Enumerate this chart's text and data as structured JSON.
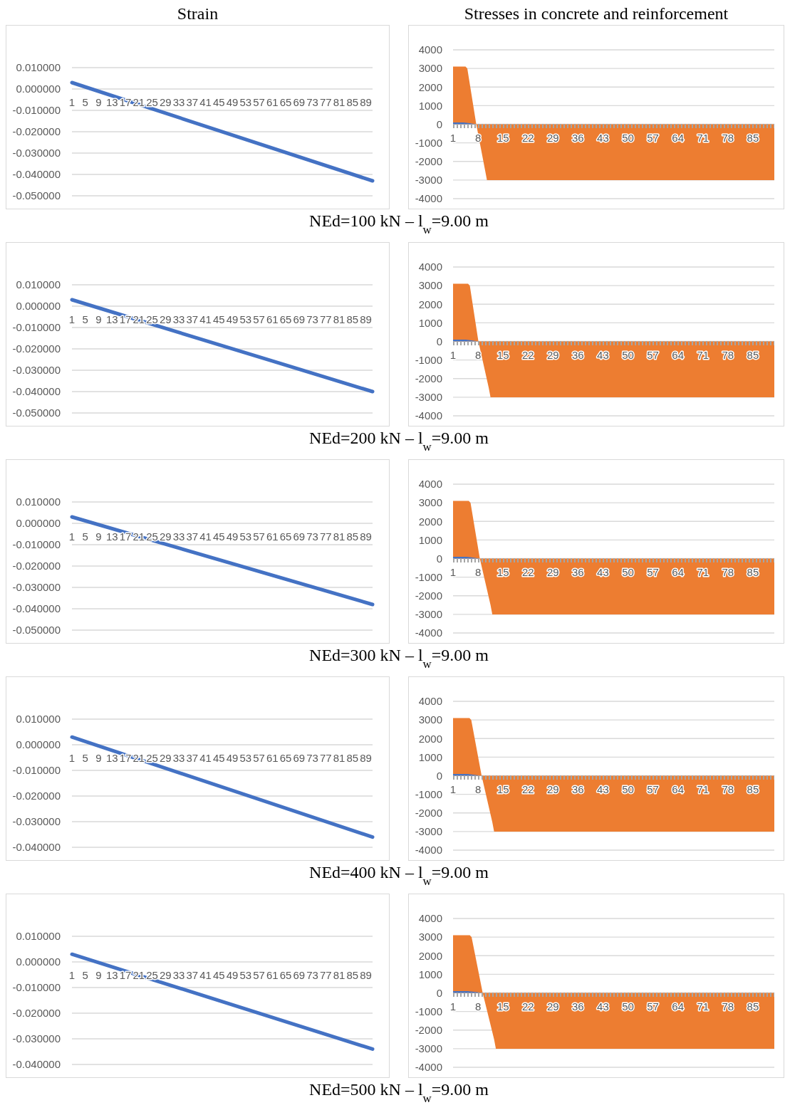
{
  "chart_data": [
    {
      "type": "line",
      "title": "Strain",
      "annotations": [
        "NEd=100 kN – l$_{w}$=9.00 m"
      ],
      "xlim": [
        1,
        91
      ],
      "xticks": [
        1,
        5,
        9,
        13,
        17,
        21,
        25,
        29,
        33,
        37,
        41,
        45,
        49,
        53,
        57,
        61,
        65,
        69,
        73,
        77,
        81,
        85,
        89
      ],
      "ylim": [
        -0.05,
        0.01
      ],
      "yticks": [
        {
          "value": 0.01,
          "label": "0.010000"
        },
        {
          "value": 0,
          "label": "0.000000"
        },
        {
          "value": -0.01,
          "label": "-0.010000"
        },
        {
          "value": -0.02,
          "label": "-0.020000"
        },
        {
          "value": -0.03,
          "label": "-0.030000"
        },
        {
          "value": -0.04,
          "label": "-0.040000"
        },
        {
          "value": -0.05,
          "label": "-0.050000"
        }
      ],
      "grid": "y",
      "series": [
        {
          "color": "#4472c4",
          "x": [
            1,
            91
          ],
          "values": [
            0.003,
            -0.043
          ]
        }
      ]
    },
    {
      "type": "area",
      "title": "Stresses in concrete and reinforcement",
      "xlim": [
        1,
        91
      ],
      "xticks": [
        1,
        8,
        15,
        22,
        29,
        36,
        43,
        50,
        57,
        64,
        71,
        78,
        85
      ],
      "ylim": [
        -4000,
        4000
      ],
      "yticks": [
        4000,
        3000,
        2000,
        1000,
        0,
        -1000,
        -2000,
        -3000,
        -4000
      ],
      "grid": "y",
      "series": [
        {
          "color": "#ed7d31",
          "x": [
            1,
            4.5,
            5,
            7.5,
            10,
            10.5,
            91
          ],
          "values": [
            3100,
            3100,
            3000,
            0,
            -2500,
            -3000,
            -3000
          ]
        },
        {
          "color": "#4472c4",
          "x": [
            1,
            4,
            6,
            7.5
          ],
          "values": [
            100,
            100,
            50,
            0
          ]
        },
        {
          "type": "line",
          "line_style": "dotted",
          "color": "#a5a5a5",
          "x": [
            1,
            91
          ],
          "values": [
            -100,
            -100
          ]
        }
      ]
    },
    {
      "type": "line",
      "annotations": [
        "NEd=200 kN – l$_{w}$=9.00 m"
      ],
      "xlim": [
        1,
        91
      ],
      "xticks": [
        1,
        5,
        9,
        13,
        17,
        21,
        25,
        29,
        33,
        37,
        41,
        45,
        49,
        53,
        57,
        61,
        65,
        69,
        73,
        77,
        81,
        85,
        89
      ],
      "ylim": [
        -0.05,
        0.01
      ],
      "yticks": [
        {
          "value": 0.01,
          "label": "0.010000"
        },
        {
          "value": 0,
          "label": "0.000000"
        },
        {
          "value": -0.01,
          "label": "-0.010000"
        },
        {
          "value": -0.02,
          "label": "-0.020000"
        },
        {
          "value": -0.03,
          "label": "-0.030000"
        },
        {
          "value": -0.04,
          "label": "-0.040000"
        },
        {
          "value": -0.05,
          "label": "-0.050000"
        }
      ],
      "grid": "y",
      "series": [
        {
          "color": "#4472c4",
          "x": [
            1,
            91
          ],
          "values": [
            0.003,
            -0.04
          ]
        }
      ]
    },
    {
      "type": "area",
      "xlim": [
        1,
        91
      ],
      "xticks": [
        1,
        8,
        15,
        22,
        29,
        36,
        43,
        50,
        57,
        64,
        71,
        78,
        85
      ],
      "ylim": [
        -4000,
        4000
      ],
      "yticks": [
        4000,
        3000,
        2000,
        1000,
        0,
        -1000,
        -2000,
        -3000,
        -4000
      ],
      "grid": "y",
      "series": [
        {
          "color": "#ed7d31",
          "x": [
            1,
            5.2,
            5.7,
            8.1,
            11,
            11.5,
            91
          ],
          "values": [
            3100,
            3100,
            3000,
            0,
            -2500,
            -3000,
            -3000
          ]
        },
        {
          "color": "#4472c4",
          "x": [
            1,
            4.5,
            6.5,
            8.1
          ],
          "values": [
            100,
            100,
            50,
            0
          ]
        },
        {
          "type": "line",
          "line_style": "dotted",
          "color": "#a5a5a5",
          "x": [
            1,
            91
          ],
          "values": [
            -100,
            -100
          ]
        }
      ]
    },
    {
      "type": "line",
      "annotations": [
        "NEd=300 kN – l$_{w}$=9.00 m"
      ],
      "xlim": [
        1,
        91
      ],
      "xticks": [
        1,
        5,
        9,
        13,
        17,
        21,
        25,
        29,
        33,
        37,
        41,
        45,
        49,
        53,
        57,
        61,
        65,
        69,
        73,
        77,
        81,
        85,
        89
      ],
      "ylim": [
        -0.05,
        0.01
      ],
      "yticks": [
        {
          "value": 0.01,
          "label": "0.010000"
        },
        {
          "value": 0,
          "label": "0.000000"
        },
        {
          "value": -0.01,
          "label": "-0.010000"
        },
        {
          "value": -0.02,
          "label": "-0.020000"
        },
        {
          "value": -0.03,
          "label": "-0.030000"
        },
        {
          "value": -0.04,
          "label": "-0.040000"
        },
        {
          "value": -0.05,
          "label": "-0.050000"
        }
      ],
      "grid": "y",
      "series": [
        {
          "color": "#4472c4",
          "x": [
            1,
            91
          ],
          "values": [
            0.003,
            -0.038
          ]
        }
      ]
    },
    {
      "type": "area",
      "xlim": [
        1,
        91
      ],
      "xticks": [
        1,
        8,
        15,
        22,
        29,
        36,
        43,
        50,
        57,
        64,
        71,
        78,
        85
      ],
      "ylim": [
        -4000,
        4000
      ],
      "yticks": [
        4000,
        3000,
        2000,
        1000,
        0,
        -1000,
        -2000,
        -3000,
        -4000
      ],
      "grid": "y",
      "series": [
        {
          "color": "#ed7d31",
          "x": [
            1,
            5.4,
            5.9,
            8.5,
            11.5,
            12,
            91
          ],
          "values": [
            3100,
            3100,
            3000,
            0,
            -2500,
            -3000,
            -3000
          ]
        },
        {
          "color": "#4472c4",
          "x": [
            1,
            4.8,
            6.8,
            8.5
          ],
          "values": [
            100,
            100,
            50,
            0
          ]
        },
        {
          "type": "line",
          "line_style": "dotted",
          "color": "#a5a5a5",
          "x": [
            1,
            91
          ],
          "values": [
            -100,
            -100
          ]
        }
      ]
    },
    {
      "type": "line",
      "annotations": [
        "NEd=400 kN – l$_{w}$=9.00 m"
      ],
      "xlim": [
        1,
        91
      ],
      "xticks": [
        1,
        5,
        9,
        13,
        17,
        21,
        25,
        29,
        33,
        37,
        41,
        45,
        49,
        53,
        57,
        61,
        65,
        69,
        73,
        77,
        81,
        85,
        89
      ],
      "ylim": [
        -0.04,
        0.01
      ],
      "yticks": [
        {
          "value": 0.01,
          "label": "0.010000"
        },
        {
          "value": 0,
          "label": "0.000000"
        },
        {
          "value": -0.01,
          "label": "-0.010000"
        },
        {
          "value": -0.02,
          "label": "-0.020000"
        },
        {
          "value": -0.03,
          "label": "-0.030000"
        },
        {
          "value": -0.04,
          "label": "-0.040000"
        }
      ],
      "grid": "y",
      "series": [
        {
          "color": "#4472c4",
          "x": [
            1,
            91
          ],
          "values": [
            0.003,
            -0.036
          ]
        }
      ]
    },
    {
      "type": "area",
      "xlim": [
        1,
        91
      ],
      "xticks": [
        1,
        8,
        15,
        22,
        29,
        36,
        43,
        50,
        57,
        64,
        71,
        78,
        85
      ],
      "ylim": [
        -4000,
        4000
      ],
      "yticks": [
        4000,
        3000,
        2000,
        1000,
        0,
        -1000,
        -2000,
        -3000,
        -4000
      ],
      "grid": "y",
      "series": [
        {
          "color": "#ed7d31",
          "x": [
            1,
            5.6,
            6.1,
            9,
            12,
            12.5,
            91
          ],
          "values": [
            3100,
            3100,
            3000,
            0,
            -2500,
            -3000,
            -3000
          ]
        },
        {
          "color": "#4472c4",
          "x": [
            1,
            5,
            7,
            9
          ],
          "values": [
            100,
            100,
            50,
            0
          ]
        },
        {
          "type": "line",
          "line_style": "dotted",
          "color": "#a5a5a5",
          "x": [
            1,
            91
          ],
          "values": [
            -100,
            -100
          ]
        }
      ]
    },
    {
      "type": "line",
      "annotations": [
        "NEd=500 kN – l$_{w}$=9.00 m"
      ],
      "xlim": [
        1,
        91
      ],
      "xticks": [
        1,
        5,
        9,
        13,
        17,
        21,
        25,
        29,
        33,
        37,
        41,
        45,
        49,
        53,
        57,
        61,
        65,
        69,
        73,
        77,
        81,
        85,
        89
      ],
      "ylim": [
        -0.04,
        0.01
      ],
      "yticks": [
        {
          "value": 0.01,
          "label": "0.010000"
        },
        {
          "value": 0,
          "label": "0.000000"
        },
        {
          "value": -0.01,
          "label": "-0.010000"
        },
        {
          "value": -0.02,
          "label": "-0.020000"
        },
        {
          "value": -0.03,
          "label": "-0.030000"
        },
        {
          "value": -0.04,
          "label": "-0.040000"
        }
      ],
      "grid": "y",
      "series": [
        {
          "color": "#4472c4",
          "x": [
            1,
            91
          ],
          "values": [
            0.003,
            -0.034
          ]
        }
      ]
    },
    {
      "type": "area",
      "xlim": [
        1,
        91
      ],
      "xticks": [
        1,
        8,
        15,
        22,
        29,
        36,
        43,
        50,
        57,
        64,
        71,
        78,
        85
      ],
      "ylim": [
        -4000,
        4000
      ],
      "yticks": [
        4000,
        3000,
        2000,
        1000,
        0,
        -1000,
        -2000,
        -3000,
        -4000
      ],
      "grid": "y",
      "series": [
        {
          "color": "#ed7d31",
          "x": [
            1,
            5.7,
            6.2,
            9.3,
            12.5,
            13,
            91
          ],
          "values": [
            3100,
            3100,
            3000,
            0,
            -2500,
            -3000,
            -3000
          ]
        },
        {
          "color": "#4472c4",
          "x": [
            1,
            5,
            7.5,
            9.3
          ],
          "values": [
            100,
            100,
            50,
            0
          ]
        },
        {
          "type": "line",
          "line_style": "dotted",
          "color": "#a5a5a5",
          "x": [
            1,
            91
          ],
          "values": [
            -100,
            -100
          ]
        }
      ]
    }
  ]
}
